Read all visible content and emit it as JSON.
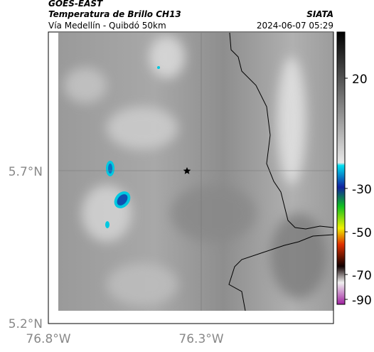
{
  "header": {
    "satellite": "GOES-EAST",
    "product": "Temperatura de Brillo CH13",
    "source": "SIATA",
    "region": "Vía Medellín - Quibdó 50km",
    "timestamp": "2024-06-07 05:29"
  },
  "axes": {
    "lat_labels": [
      "5.7°N",
      "5.2°N"
    ],
    "lon_labels": [
      "76.8°W",
      "76.3°W"
    ]
  },
  "colorbar": {
    "labels": [
      "20",
      "-30",
      "-50",
      "-70",
      "-90"
    ]
  }
}
